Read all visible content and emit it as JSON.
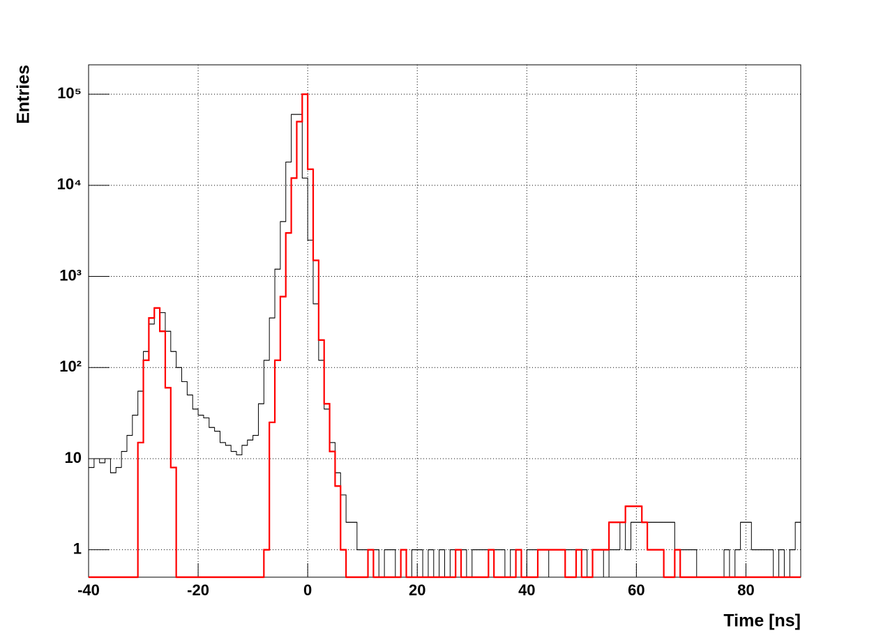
{
  "chart_data": {
    "type": "histogram",
    "x_label": "Time [ns]",
    "y_label": "Entries",
    "bins": [
      -40,
      -39,
      -38,
      -37,
      -36,
      -35,
      -34,
      -33,
      -32,
      -31,
      -30,
      -29,
      -28,
      -27,
      -26,
      -25,
      -24,
      -23,
      -22,
      -21,
      -20,
      -19,
      -18,
      -17,
      -16,
      -15,
      -14,
      -13,
      -12,
      -11,
      -10,
      -9,
      -8,
      -7,
      -6,
      -5,
      -4,
      -3,
      -2,
      -1,
      0,
      1,
      2,
      3,
      4,
      5,
      6,
      7,
      8,
      9,
      10,
      11,
      12,
      13,
      14,
      15,
      16,
      17,
      18,
      19,
      20,
      21,
      22,
      23,
      24,
      25,
      26,
      27,
      28,
      29,
      30,
      31,
      32,
      33,
      34,
      35,
      36,
      37,
      38,
      39,
      40,
      41,
      42,
      43,
      44,
      45,
      46,
      47,
      48,
      49,
      50,
      51,
      52,
      53,
      54,
      55,
      56,
      57,
      58,
      59,
      60,
      61,
      62,
      63,
      64,
      65,
      66,
      67,
      68,
      69,
      70,
      71,
      72,
      73,
      74,
      75,
      76,
      77,
      78,
      79,
      80,
      81,
      82,
      83,
      84,
      85,
      86,
      87,
      88,
      89,
      90
    ],
    "series": [
      {
        "color": "#000000",
        "values": [
          8,
          10,
          9,
          10,
          7,
          8,
          12,
          18,
          30,
          55,
          150,
          300,
          450,
          400,
          250,
          150,
          100,
          70,
          50,
          35,
          30,
          28,
          22,
          20,
          15,
          14,
          12,
          11,
          14,
          16,
          18,
          40,
          120,
          350,
          1200,
          4000,
          18000,
          60000,
          60000,
          12000,
          2500,
          500,
          120,
          35,
          15,
          7,
          4,
          2,
          2,
          1,
          1,
          0,
          1,
          0,
          1,
          1,
          0,
          1,
          0,
          1,
          1,
          0,
          1,
          0,
          1,
          0,
          1,
          1,
          1,
          0,
          1,
          1,
          1,
          0,
          1,
          1,
          0,
          1,
          1,
          0,
          1,
          1,
          0,
          0,
          1,
          1,
          1,
          1,
          1,
          1,
          1,
          0,
          1,
          1,
          0,
          1,
          1,
          2,
          1,
          2,
          2,
          2,
          2,
          2,
          2,
          2,
          2,
          1,
          1,
          1,
          1,
          0,
          0,
          0,
          0,
          0,
          1,
          0,
          1,
          2,
          2,
          1,
          1,
          1,
          1,
          0,
          1,
          0,
          1,
          2
        ]
      },
      {
        "color": "#ff0000",
        "values": [
          0,
          0,
          0,
          0,
          0,
          0,
          0,
          0,
          0,
          15,
          120,
          350,
          450,
          250,
          60,
          8,
          0,
          0,
          0,
          0,
          0,
          0,
          0,
          0,
          0,
          0,
          0,
          0,
          0,
          0,
          0,
          0,
          1,
          25,
          120,
          600,
          3000,
          12000,
          50000,
          100000,
          15000,
          1500,
          200,
          40,
          12,
          5,
          1,
          0,
          0,
          0,
          0,
          1,
          0,
          0,
          0,
          0,
          0,
          1,
          0,
          0,
          0,
          0,
          0,
          0,
          0,
          0,
          0,
          1,
          0,
          0,
          0,
          0,
          0,
          1,
          0,
          0,
          0,
          0,
          1,
          0,
          0,
          0,
          1,
          1,
          1,
          1,
          1,
          0,
          0,
          1,
          0,
          0,
          1,
          1,
          1,
          2,
          2,
          2,
          3,
          3,
          3,
          2,
          1,
          1,
          1,
          0,
          0,
          1,
          0,
          0,
          0,
          0,
          0,
          0,
          0,
          0,
          0,
          0,
          0,
          0,
          0,
          0,
          0,
          0,
          0,
          0,
          0,
          0,
          0,
          0
        ]
      }
    ],
    "xlim": [
      -40,
      90
    ],
    "xticks": [
      -40,
      -20,
      0,
      20,
      40,
      60,
      80
    ],
    "ylim": [
      0.5,
      210000
    ],
    "log_y": true,
    "yticks": [
      1,
      10,
      {
        "value": 100,
        "label": "10²"
      },
      {
        "value": 1000,
        "label": "10³"
      },
      {
        "value": 10000,
        "label": "10⁴"
      },
      {
        "value": 100000,
        "label": "10⁵"
      }
    ],
    "grid": true
  }
}
